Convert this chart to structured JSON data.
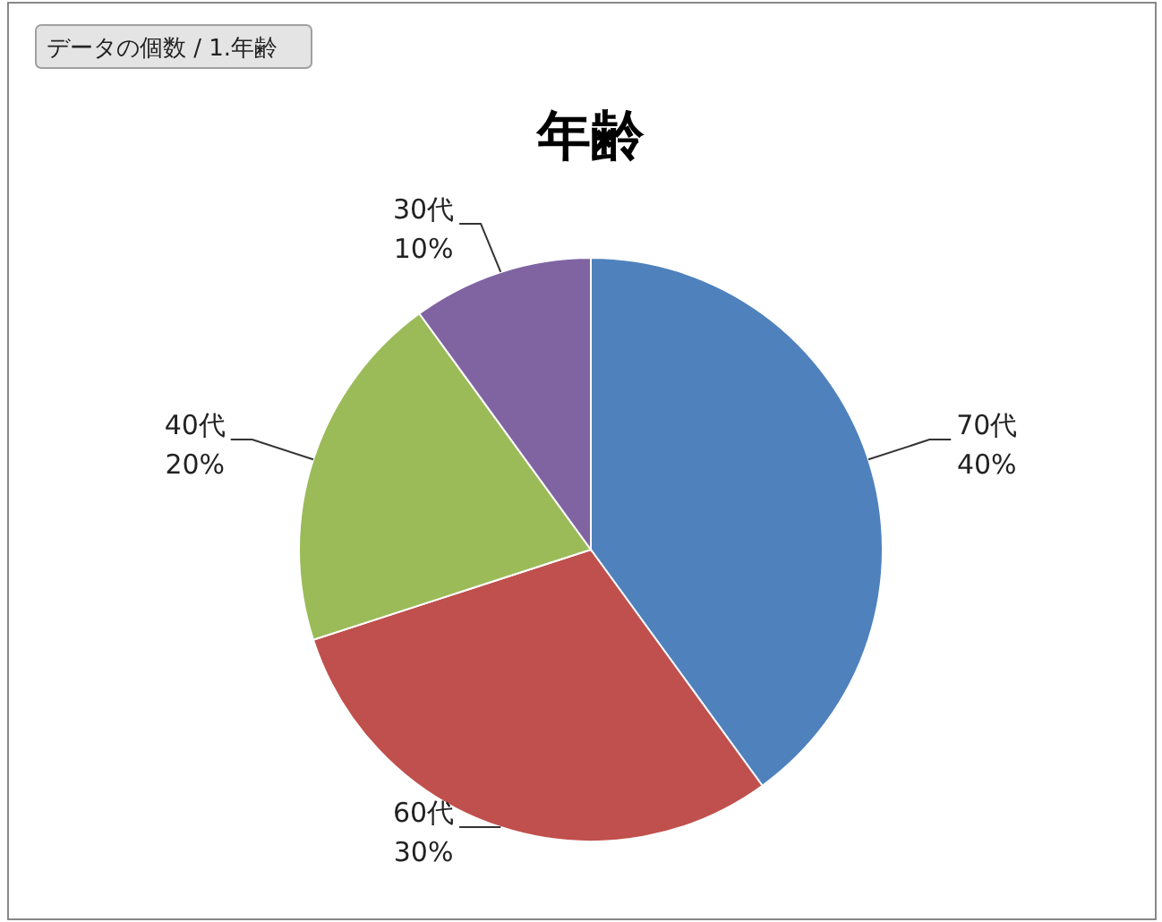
{
  "chart_data": {
    "type": "pie",
    "title": "年齢",
    "categories": [
      "70代",
      "60代",
      "40代",
      "30代"
    ],
    "values": [
      40,
      30,
      20,
      10
    ],
    "colors": [
      "#4f81bd",
      "#c0504d",
      "#9bbb59",
      "#8064a2"
    ],
    "value_labels": [
      "40%",
      "30%",
      "20%",
      "10%"
    ],
    "annotations": [
      "データの個数 / 1.年齢"
    ]
  }
}
